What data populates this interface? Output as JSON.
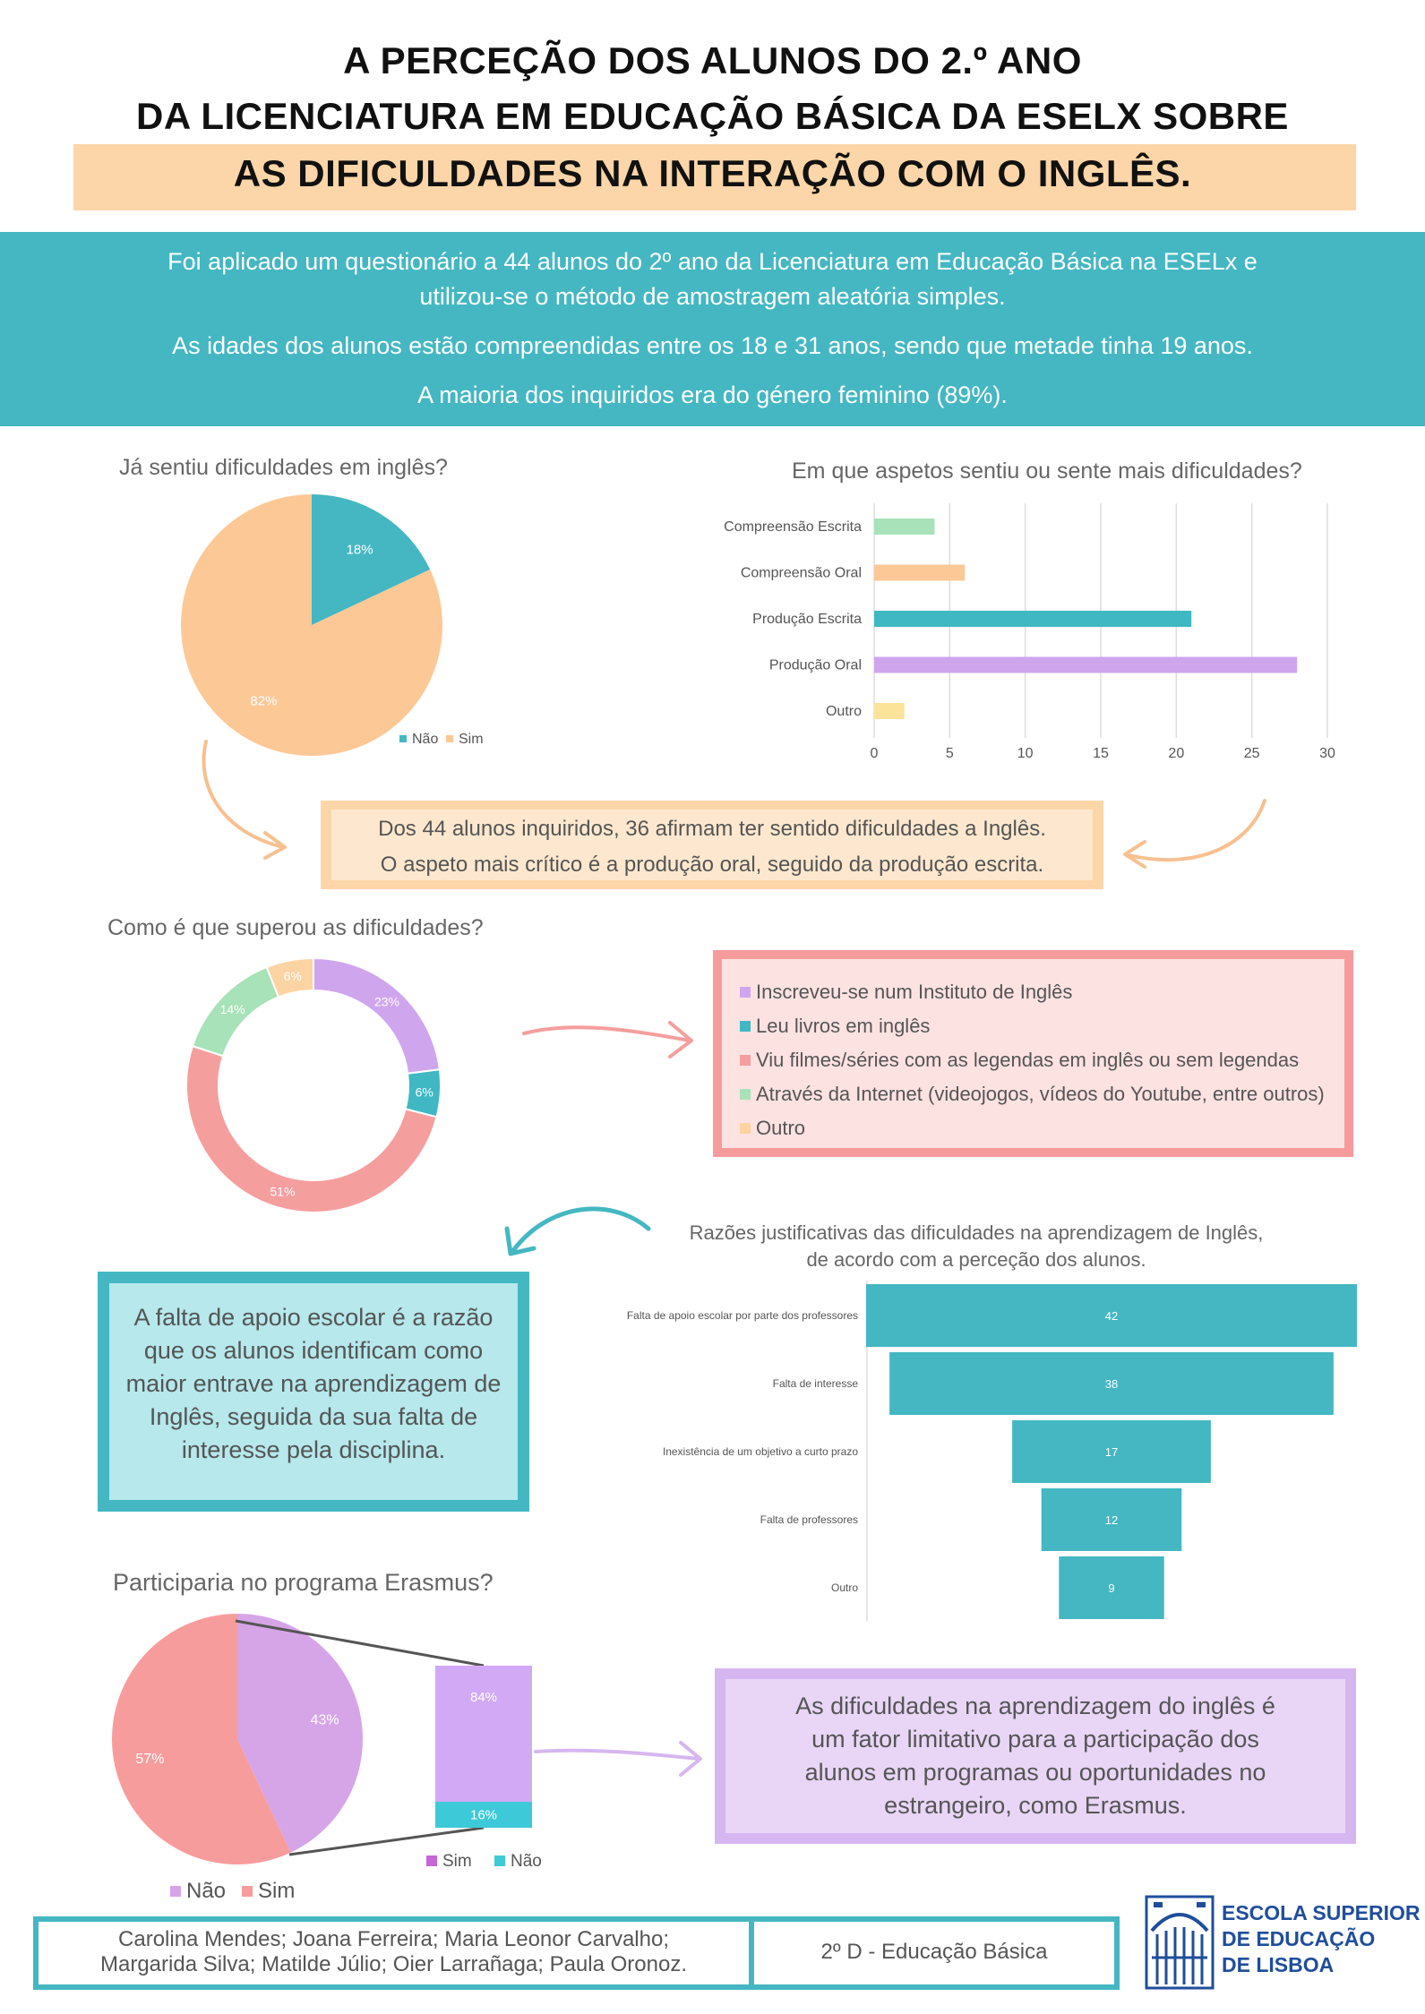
{
  "title": {
    "line1": "A PERCEÇÃO DOS ALUNOS DO 2.º ANO",
    "line2": "DA LICENCIATURA EM EDUCAÇÃO BÁSICA DA ESELX SOBRE",
    "line3": "AS DIFICULDADES NA INTERAÇÃO COM O INGLÊS."
  },
  "intro": {
    "p1a": "Foi aplicado um questionário a 44 alunos do 2º ano da Licenciatura em Educação Básica na ESELx e",
    "p1b": "utilizou-se o método de amostragem aleatória simples.",
    "p2": "As idades dos alunos estão compreendidas entre os 18 e 31 anos, sendo que metade tinha 19 anos.",
    "p3": "A maioria dos inquiridos era do género feminino (89%)."
  },
  "summary": {
    "line1": "Dos 44 alunos inquiridos, 36 afirmam ter sentido dificuldades a Inglês.",
    "line2": "O aspeto mais crítico é a produção oral, seguido da produção escrita."
  },
  "overcome_list": [
    {
      "label": "Inscreveu-se num Instituto de Inglês",
      "color": "#cfa6ee"
    },
    {
      "label": "Leu livros em inglês",
      "color": "#3fb8c3"
    },
    {
      "label": "Viu filmes/séries com as legendas em inglês ou sem legendas",
      "color": "#f59e9e"
    },
    {
      "label": "Através da Internet (videojogos, vídeos do Youtube, entre outros)",
      "color": "#a8e2b8"
    },
    {
      "label": "Outro",
      "color": "#fcd3a3"
    }
  ],
  "reason_text": {
    "l1": "A falta de apoio escolar é a razão",
    "l2": "que os alunos identificam como",
    "l3": "maior entrave na aprendizagem de",
    "l4": "Inglês, seguida da sua falta de",
    "l5": "interesse pela disciplina."
  },
  "conclusion": {
    "l1": "As dificuldades na aprendizagem do inglês é",
    "l2": "um fator limitativo para a participação dos",
    "l3": "alunos em programas ou oportunidades no",
    "l4": "estrangeiro, como Erasmus."
  },
  "footer": {
    "names1": "Carolina Mendes; Joana Ferreira; Maria Leonor Carvalho;",
    "names2": "Margarida Silva; Matilde Júlio; Oier Larrañaga; Paula Oronoz.",
    "class": "2º D - Educação Básica"
  },
  "logo": {
    "l1": "ESCOLA SUPERIOR",
    "l2": "DE EDUCAÇÃO",
    "l3": "DE LISBOA"
  },
  "chart_data": [
    {
      "id": "difficulty-pie",
      "type": "pie",
      "title": "Já sentiu dificuldades em inglês?",
      "slices": [
        {
          "label": "Não",
          "value": 18,
          "display": "18%",
          "color": "#44b7c2"
        },
        {
          "label": "Sim",
          "value": 82,
          "display": "82%",
          "color": "#fcc896"
        }
      ],
      "legend": "bottom-right"
    },
    {
      "id": "aspects-bar",
      "type": "bar",
      "orientation": "horizontal",
      "title": "Em que aspetos sentiu ou sente mais dificuldades?",
      "categories": [
        "Compreensão Escrita",
        "Compreensão Oral",
        "Produção Escrita",
        "Produção Oral",
        "Outro"
      ],
      "values": [
        4,
        6,
        21,
        28,
        2
      ],
      "colors": [
        "#a8e2b8",
        "#fcc896",
        "#3fb8c3",
        "#cfa6ee",
        "#fbe39a"
      ],
      "xlim": [
        0,
        30
      ],
      "xticks": [
        0,
        5,
        10,
        15,
        20,
        25,
        30
      ],
      "grid": true
    },
    {
      "id": "overcome-donut",
      "type": "pie",
      "donut": true,
      "title": "Como é que superou as dificuldades?",
      "slices": [
        {
          "label": "Inscreveu-se num Instituto de Inglês",
          "value": 23,
          "display": "23%",
          "color": "#cfa6ee"
        },
        {
          "label": "Leu livros em inglês",
          "value": 6,
          "display": "6%",
          "color": "#3fb8c3"
        },
        {
          "label": "Viu filmes/séries com as legendas em inglês ou sem legendas",
          "value": 51,
          "display": "51%",
          "color": "#f59e9e"
        },
        {
          "label": "Através da Internet (videojogos, vídeos do Youtube, entre outros)",
          "value": 14,
          "display": "14%",
          "color": "#a8e2b8"
        },
        {
          "label": "Outro",
          "value": 6,
          "display": "6%",
          "color": "#fcd3a3"
        }
      ]
    },
    {
      "id": "reasons-funnel",
      "type": "bar",
      "orientation": "horizontal-centered",
      "title": "Razões justificativas das dificuldades na aprendizagem de Inglês,",
      "subtitle": "de acordo com a perceção dos alunos.",
      "categories": [
        "Falta de apoio escolar por parte dos professores",
        "Falta de interesse",
        "Inexistência de um objetivo a curto prazo",
        "Falta de professores",
        "Outro"
      ],
      "values": [
        42,
        38,
        17,
        12,
        9
      ],
      "color": "#44b7c2"
    },
    {
      "id": "erasmus-pie",
      "type": "pie",
      "title": "Participaria no programa Erasmus?",
      "slices": [
        {
          "label": "Não",
          "value": 43,
          "display": "43%",
          "color": "#d5a5e8"
        },
        {
          "label": "Sim",
          "value": 57,
          "display": "57%",
          "color": "#f79c9c"
        }
      ],
      "legend": "bottom"
    },
    {
      "id": "erasmus-breakdown",
      "type": "bar",
      "stacked": true,
      "segments": [
        {
          "label": "Sim",
          "value": 84,
          "display": "84%",
          "color": "#d1a9f5"
        },
        {
          "label": "Não",
          "value": 16,
          "display": "16%",
          "color": "#3ec9d8"
        }
      ],
      "legend_colors": {
        "Sim": "#c565d6",
        "Não": "#3ec9d8"
      },
      "legend": "bottom"
    }
  ]
}
